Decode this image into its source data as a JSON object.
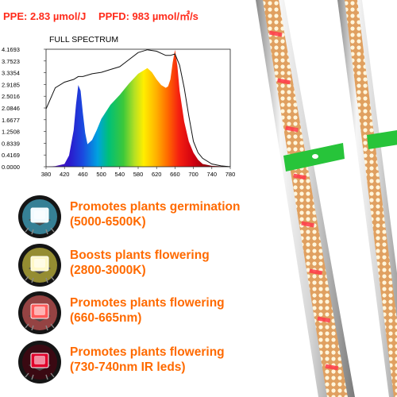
{
  "header": {
    "ppe": "PPE: 2.83 µmol/J",
    "ppfd": "PPFD: 983 µmol/㎡/s"
  },
  "chart_data": {
    "type": "area",
    "title": "FULL SPECTRUM",
    "xlim": [
      380,
      780
    ],
    "ylim": [
      0,
      4.1693
    ],
    "x_ticks": [
      380,
      420,
      460,
      500,
      540,
      580,
      620,
      660,
      700,
      740,
      780
    ],
    "y_ticks": [
      "0.0000",
      "0.4169",
      "0.8339",
      "1.2508",
      "1.6677",
      "2.0846",
      "2.5016",
      "2.9185",
      "3.3354",
      "3.7523",
      "4.1693"
    ],
    "series": [
      {
        "type": "area",
        "x": [
          380,
          400,
          420,
          430,
          440,
          445,
          450,
          455,
          460,
          465,
          470,
          480,
          490,
          500,
          520,
          540,
          560,
          580,
          600,
          610,
          620,
          630,
          640,
          645,
          650,
          655,
          660,
          665,
          670,
          680,
          690,
          700,
          710,
          720,
          740,
          780
        ],
        "y": [
          0.0,
          0.02,
          0.1,
          0.4,
          1.3,
          2.2,
          2.9,
          2.7,
          1.9,
          1.2,
          0.8,
          0.95,
          1.3,
          1.7,
          2.2,
          2.55,
          2.95,
          3.3,
          3.5,
          3.35,
          3.1,
          2.9,
          2.8,
          2.85,
          3.1,
          3.7,
          4.15,
          3.6,
          2.7,
          1.6,
          0.9,
          0.5,
          0.25,
          0.1,
          0.03,
          0.0
        ]
      },
      {
        "type": "line",
        "color": "#111111",
        "x": [
          380,
          400,
          420,
          440,
          450,
          460,
          480,
          500,
          520,
          540,
          560,
          580,
          600,
          620,
          640,
          650,
          660,
          670,
          680,
          690,
          700,
          710,
          720,
          740,
          760,
          780
        ],
        "y": [
          2.05,
          2.8,
          3.0,
          3.1,
          3.2,
          3.2,
          3.3,
          3.35,
          3.45,
          3.55,
          3.8,
          4.05,
          4.15,
          4.1,
          3.95,
          3.95,
          4.0,
          3.6,
          2.8,
          1.8,
          0.9,
          0.5,
          0.3,
          0.1,
          0.03,
          0.0
        ]
      }
    ]
  },
  "features": [
    {
      "icon": "white-led-chip-icon",
      "line1": "Promotes plants germination",
      "line2": "(5000-6500K)",
      "chip": "#f2fbff",
      "glow": "#52d8ff"
    },
    {
      "icon": "warm-led-chip-icon",
      "line1": "Boosts plants flowering",
      "line2": "(2800-3000K)",
      "chip": "#fff8c8",
      "glow": "#fff04a"
    },
    {
      "icon": "red-led-chip-icon",
      "line1": "Promotes plants flowering",
      "line2": "(660-665nm)",
      "chip": "#ff5a5a",
      "glow": "#ff6a6a"
    },
    {
      "icon": "ir-led-chip-icon",
      "line1": "Promotes plants flowering",
      "line2": "(730-740nm IR leds)",
      "chip": "#e0002a",
      "glow": "#5a0010"
    }
  ]
}
